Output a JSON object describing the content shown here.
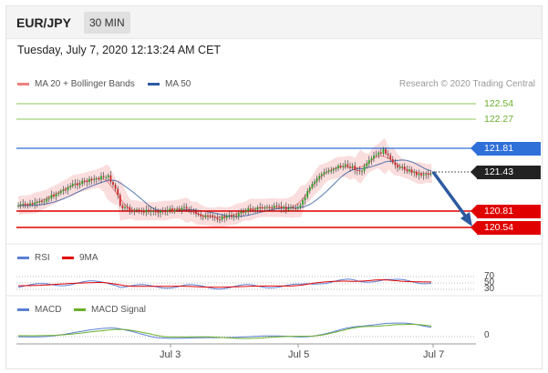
{
  "header": {
    "pair": "EUR/JPY",
    "interval": "30 MIN"
  },
  "datetime": "Tuesday, July 7, 2020 12:13:24 AM CET",
  "main_legend": [
    {
      "label": "MA 20 + Bollinger Bands",
      "color": "#f08080"
    },
    {
      "label": "MA 50",
      "color": "#2c5aa0"
    }
  ],
  "credit": "Research © 2020 Trading Central",
  "levels": [
    {
      "value": "122.54",
      "color": "#6aae2a",
      "style": "plain"
    },
    {
      "value": "122.27",
      "color": "#6aae2a",
      "style": "plain"
    },
    {
      "value": "121.81",
      "color": "#2f6fd8",
      "style": "tag"
    },
    {
      "value": "121.43",
      "color": "#222222",
      "style": "tag"
    },
    {
      "value": "120.81",
      "color": "#e00000",
      "style": "tag"
    },
    {
      "value": "120.54",
      "color": "#e00000",
      "style": "tag"
    }
  ],
  "rsi_legend": [
    {
      "label": "RSI",
      "color": "#5b7fd6"
    },
    {
      "label": "9MA",
      "color": "#e00000"
    }
  ],
  "rsi_levels": [
    "70",
    "50",
    "30"
  ],
  "macd_legend": [
    {
      "label": "MACD",
      "color": "#5b7fd6"
    },
    {
      "label": "MACD Signal",
      "color": "#6aae2a"
    }
  ],
  "macd_zero": "0",
  "x_labels": [
    "Jul 3",
    "Jul 5",
    "Jul 7"
  ],
  "colors": {
    "up": "#2aa02a",
    "down": "#cc2a2a",
    "arrow": "#2c5aa0"
  }
}
